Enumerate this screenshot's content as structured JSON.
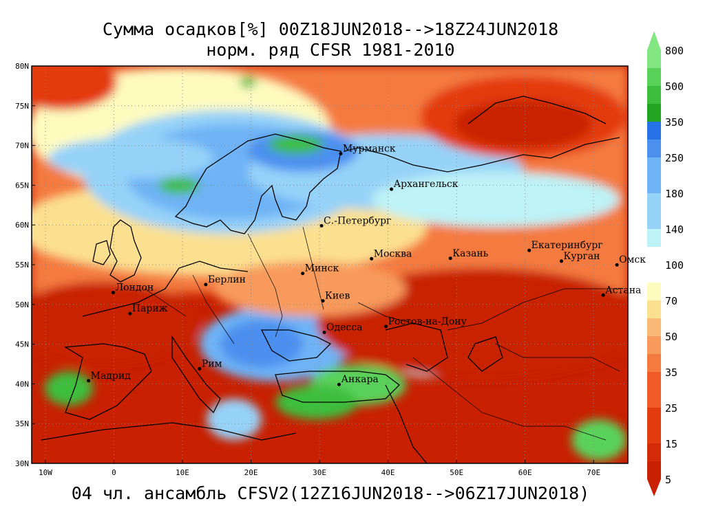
{
  "title_line1": "Сумма осадков[%] 00Z18JUN2018-->18Z24JUN2018",
  "title_line2": "норм. ряд CFSR 1981-2010",
  "footer": "04 чл. ансамбль CFSV2(12Z16JUN2018-->06Z17JUN2018)",
  "lat_labels": [
    "80N",
    "75N",
    "70N",
    "65N",
    "60N",
    "55N",
    "50N",
    "45N",
    "40N",
    "35N",
    "30N"
  ],
  "lon_labels": [
    "10W",
    "0",
    "10E",
    "20E",
    "30E",
    "40E",
    "50E",
    "60E",
    "70E"
  ],
  "colorbar": {
    "levels": [
      "5",
      "15",
      "25",
      "35",
      "50",
      "70",
      "100",
      "140",
      "180",
      "250",
      "350",
      "500",
      "800"
    ],
    "colors": [
      "#c82000",
      "#e43a10",
      "#f05a28",
      "#f47a40",
      "#f89a5c",
      "#fbb977",
      "#fbe090",
      "#fefbbf",
      "#bdf2f6",
      "#96d2f8",
      "#6eb3f6",
      "#4c90f0",
      "#2872e8",
      "#21a521",
      "#3cbe3c",
      "#5ad25a",
      "#82e682"
    ]
  },
  "cities": [
    {
      "name": "Мурманск",
      "lon": 33.1,
      "lat": 68.97
    },
    {
      "name": "Архангельск",
      "lon": 40.5,
      "lat": 64.5
    },
    {
      "name": "С.-Петербург",
      "lon": 30.3,
      "lat": 59.9
    },
    {
      "name": "Москва",
      "lon": 37.6,
      "lat": 55.75
    },
    {
      "name": "Казань",
      "lon": 49.1,
      "lat": 55.8
    },
    {
      "name": "Екатеринбург",
      "lon": 60.6,
      "lat": 56.8
    },
    {
      "name": "Курган",
      "lon": 65.3,
      "lat": 55.45
    },
    {
      "name": "Омск",
      "lon": 73.4,
      "lat": 54.98
    },
    {
      "name": "Астана",
      "lon": 71.4,
      "lat": 51.17
    },
    {
      "name": "Минск",
      "lon": 27.55,
      "lat": 53.9
    },
    {
      "name": "Киев",
      "lon": 30.5,
      "lat": 50.45
    },
    {
      "name": "Берлин",
      "lon": 13.4,
      "lat": 52.5
    },
    {
      "name": "Лондон",
      "lon": -0.1,
      "lat": 51.5
    },
    {
      "name": "Париж",
      "lon": 2.35,
      "lat": 48.85
    },
    {
      "name": "Ростов-на-Дону",
      "lon": 39.7,
      "lat": 47.23
    },
    {
      "name": "Одесса",
      "lon": 30.7,
      "lat": 46.48
    },
    {
      "name": "Рим",
      "lon": 12.5,
      "lat": 41.9
    },
    {
      "name": "Мадрид",
      "lon": -3.7,
      "lat": 40.4
    },
    {
      "name": "Анкара",
      "lon": 32.85,
      "lat": 39.93
    }
  ]
}
